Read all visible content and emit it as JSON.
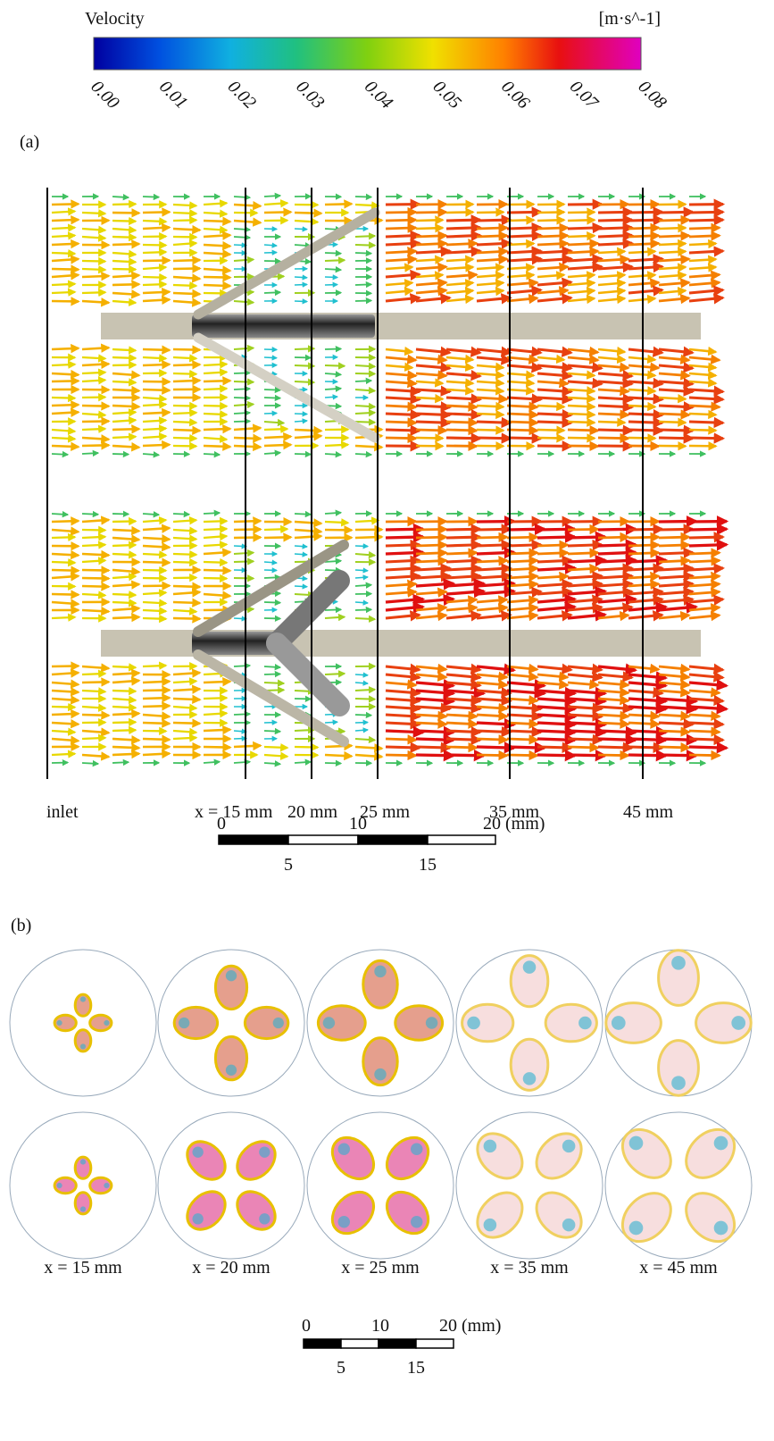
{
  "colorbar": {
    "title": "Velocity",
    "unit": "[m·s^-1]",
    "ticks": [
      "0.00",
      "0.01",
      "0.02",
      "0.03",
      "0.04",
      "0.05",
      "0.06",
      "0.07",
      "0.08"
    ]
  },
  "panel_a": {
    "label": "(a)",
    "sections": [
      "inlet",
      "x = 15 mm",
      "20 mm",
      "25 mm",
      "35 mm",
      "45 mm"
    ],
    "scale_bar": {
      "top": [
        "0",
        "10",
        "20 (mm)"
      ],
      "bottom": [
        "5",
        "15"
      ]
    }
  },
  "panel_b": {
    "label": "(b)",
    "sections": [
      "x = 15 mm",
      "x = 20 mm",
      "x = 25 mm",
      "x = 35 mm",
      "x = 45 mm"
    ],
    "scale_bar": {
      "top": [
        "0",
        "10",
        "20 (mm)"
      ],
      "bottom": [
        "5",
        "15"
      ]
    }
  }
}
